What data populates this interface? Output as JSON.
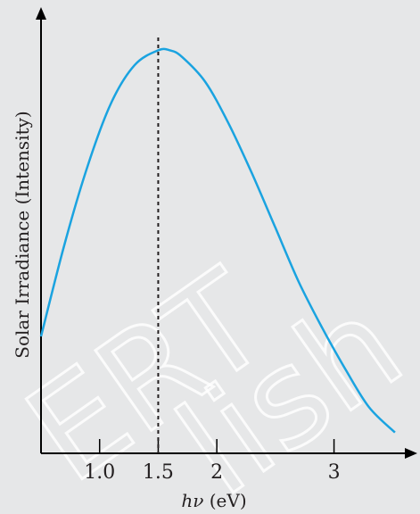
{
  "chart_data": {
    "type": "line",
    "title": "",
    "xlabel_symbol": "hν",
    "xlabel_unit": "(eV)",
    "ylabel": "Solar  Irradiance (Intensity)",
    "xlim": [
      0.5,
      3.65
    ],
    "ylim": [
      0,
      1
    ],
    "x_ticks": [
      1.0,
      1.5,
      2,
      3
    ],
    "x_tick_labels": [
      "1.0",
      "1.5",
      "2",
      "3"
    ],
    "peak_marker_x": 1.5,
    "grid": false,
    "series": [
      {
        "color": "#1aa3e0",
        "x": [
          0.5,
          0.7,
          0.9,
          1.1,
          1.3,
          1.5,
          1.6,
          1.7,
          1.9,
          2.1,
          2.3,
          2.5,
          2.7,
          2.9,
          3.1,
          3.3,
          3.52
        ],
        "y": [
          0.28,
          0.5,
          0.69,
          0.84,
          0.93,
          0.965,
          0.965,
          0.95,
          0.89,
          0.79,
          0.67,
          0.54,
          0.41,
          0.3,
          0.2,
          0.11,
          0.05
        ]
      }
    ]
  },
  "watermark": [
    "ERT",
    "lish"
  ],
  "colors": {
    "axis": "#000000",
    "curve": "#1aa3e0",
    "background": "#e6e7e8"
  }
}
